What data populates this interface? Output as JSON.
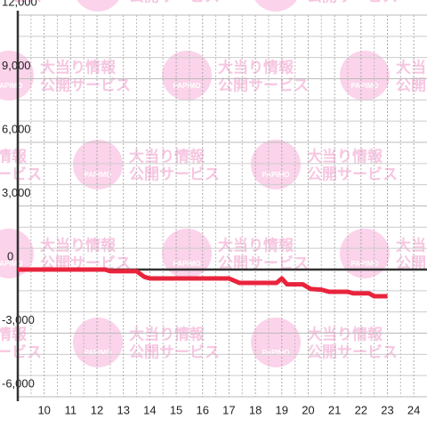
{
  "watermark": {
    "logo": "PAPIMO",
    "line1": "大当り情報",
    "line2": "公開サービス"
  },
  "chart_data": {
    "type": "line",
    "x": [
      9,
      12.3,
      12.5,
      13.5,
      13.8,
      14,
      17,
      17.4,
      18.8,
      19,
      19.2,
      19.8,
      20.1,
      20.5,
      20.8,
      21.5,
      21.7,
      22.3,
      22.5,
      23
    ],
    "series": [
      {
        "color": "#e8243c",
        "values": [
          0,
          0,
          -80,
          -80,
          -350,
          -420,
          -420,
          -630,
          -630,
          -420,
          -700,
          -700,
          -920,
          -950,
          -1050,
          -1050,
          -1120,
          -1120,
          -1260,
          -1260
        ]
      }
    ],
    "xlim": [
      9,
      24.5
    ],
    "ylim": [
      -6000,
      12000
    ],
    "xticks": [
      10,
      11,
      12,
      13,
      14,
      15,
      16,
      17,
      18,
      19,
      20,
      21,
      22,
      23,
      24
    ],
    "x_minor_ticks": [
      9.5,
      10.5,
      11.5,
      12.5,
      13.5,
      14.5,
      15.5,
      16.5,
      17.5,
      18.5,
      19.5,
      20.5,
      21.5,
      22.5,
      23.5
    ],
    "yticks": [
      {
        "value": 12000,
        "label": "12,000"
      },
      {
        "value": 9000,
        "label": "9,000"
      },
      {
        "value": 6000,
        "label": "6,000"
      },
      {
        "value": 3000,
        "label": "3,000"
      },
      0,
      {
        "value": -3000,
        "label": "-3,000"
      },
      {
        "value": -6000,
        "label": "-6,000"
      }
    ],
    "y_minor_ticks": [
      11000,
      10000,
      8000,
      7000,
      5000,
      4000,
      2000,
      1000,
      -1000,
      -2000,
      -4000,
      -5000
    ],
    "grid": true
  }
}
